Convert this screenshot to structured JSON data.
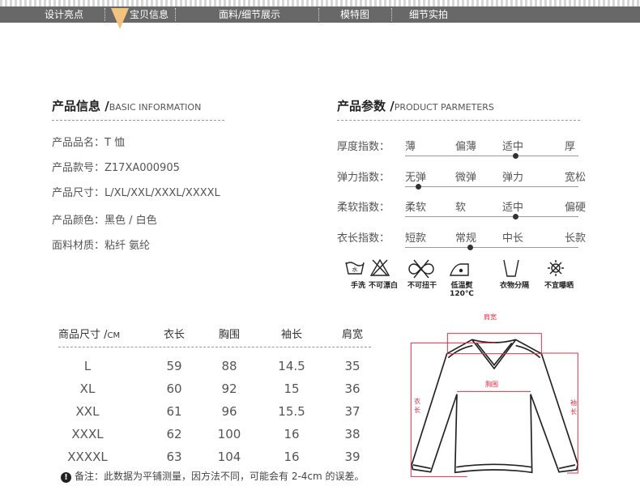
{
  "nav": {
    "tabs": [
      "设计亮点",
      "宝贝信息",
      "面料/细节展示",
      "模特图",
      "细节实拍"
    ],
    "active": 1,
    "accent": "#f3c27e"
  },
  "info": {
    "title": "产品信息 /",
    "subtitle": "BASIC INFORMATION",
    "rows": [
      "产品品名：T 恤",
      "产品款号：Z17XA000905",
      "产品尺寸：L/XL/XXL/XXXL/XXXXL",
      "产品颜色：黑色 / 白色",
      "面料材质：粘纤 氨纶"
    ]
  },
  "params": {
    "title": "产品参数 /",
    "subtitle": "PRODUCT PARMETERS",
    "indices": [
      {
        "label": "厚度指数：",
        "options": [
          "薄",
          "偏薄",
          "适中",
          "厚"
        ],
        "selected": "适中"
      },
      {
        "label": "弹力指数：",
        "options": [
          "无弹",
          "微弹",
          "弹力",
          "宽松"
        ],
        "selected": "无弹"
      },
      {
        "label": "柔软指数：",
        "options": [
          "柔软",
          "软",
          "适中",
          "偏硬"
        ],
        "selected": "适中"
      },
      {
        "label": "衣长指数：",
        "options": [
          "短款",
          "常规",
          "中长",
          "长款"
        ],
        "selected": "常规"
      }
    ],
    "care": [
      {
        "icon": "hand-wash-icon",
        "label": "手洗"
      },
      {
        "icon": "no-bleach-icon",
        "label": "不可漂白"
      },
      {
        "icon": "no-wring-icon",
        "label": "不可扭干"
      },
      {
        "icon": "low-iron-icon",
        "label": "低温熨120℃"
      },
      {
        "icon": "wash-separately-icon",
        "label": "衣物分隔"
      },
      {
        "icon": "no-sun-icon",
        "label": "不宜曝晒"
      }
    ]
  },
  "size": {
    "header": [
      "商品尺寸 /",
      "CM",
      "衣长",
      "胸围",
      "袖长",
      "肩宽"
    ],
    "rows": [
      [
        "L",
        "59",
        "88",
        "14.5",
        "35"
      ],
      [
        "XL",
        "60",
        "92",
        "15",
        "36"
      ],
      [
        "XXL",
        "61",
        "96",
        "15.5",
        "37"
      ],
      [
        "XXXL",
        "62",
        "100",
        "16",
        "38"
      ],
      [
        "XXXXL",
        "63",
        "104",
        "16",
        "39"
      ]
    ],
    "note": "备注：此数据为平铺测量，因方法不同，可能会有 2-4cm 的误差。"
  },
  "diagram": {
    "shoulder": "肩宽",
    "chest": "胸围",
    "length": "衣长",
    "sleeve": "袖长",
    "color": "#e0304a"
  }
}
